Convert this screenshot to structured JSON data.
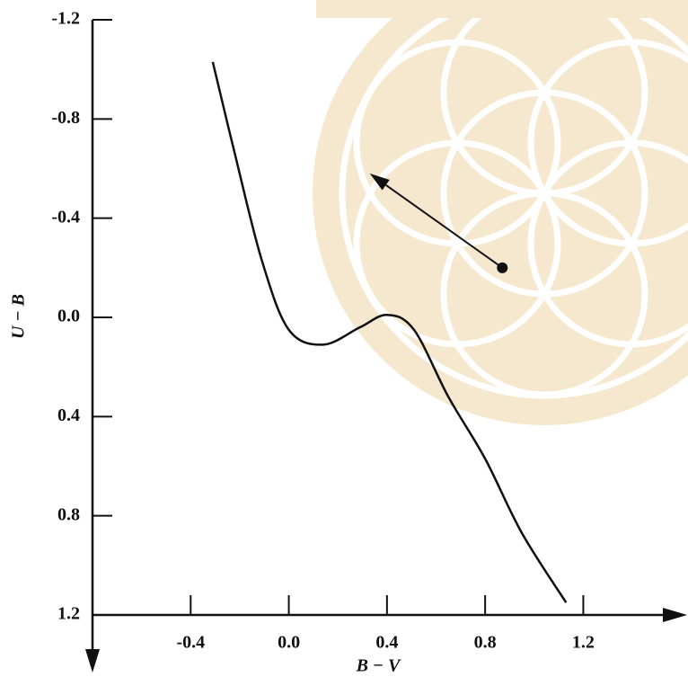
{
  "chart_data": {
    "type": "line",
    "x_label": "B − V",
    "y_label": "U − B",
    "x": [
      -0.31,
      -0.22,
      -0.11,
      0.0,
      0.14,
      0.29,
      0.4,
      0.51,
      0.65,
      0.8,
      0.95,
      1.13
    ],
    "series": [
      {
        "color": "#111111",
        "values": [
          -1.03,
          -0.66,
          -0.23,
          0.05,
          0.11,
          0.04,
          -0.01,
          0.05,
          0.32,
          0.57,
          0.87,
          1.15
        ]
      }
    ],
    "reddening_vector": {
      "x": [
        0.87,
        0.33
      ],
      "y": [
        -0.2,
        -0.58
      ]
    },
    "xlim": [
      -0.8,
      1.6
    ],
    "ylim": [
      -1.2,
      1.2
    ],
    "y_inverted": true,
    "xticks": [
      -0.4,
      {
        "value": 0,
        "label": "0.0"
      },
      0.4,
      0.8,
      1.2
    ],
    "yticks": [
      -1.2,
      -0.8,
      -0.4,
      {
        "value": 0,
        "label": "0.0"
      },
      0.4,
      0.8,
      1.2
    ]
  }
}
